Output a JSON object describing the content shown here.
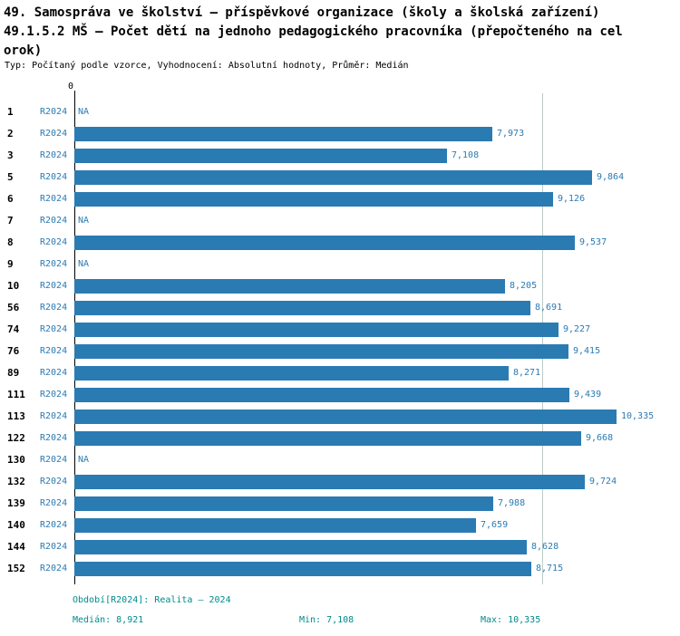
{
  "chart_data": {
    "type": "bar",
    "orientation": "horizontal",
    "title_line1": "49. Samospráva ve školství – příspěvkové organizace (školy a školská zařízení)",
    "title_line2": "49.1.5.2 MŠ – Počet dětí na jednoho pedagogického pracovníka (přepočteného na cel",
    "title_line3": "orok)",
    "subtitle": "Typ: Počítaný podle vzorce, Vyhodnocení: Absolutní hodnoty, Průměr: Medián",
    "series_label": "R2024",
    "x_axis": {
      "zero_label": "0",
      "min": 0,
      "max": 10.335
    },
    "median_line_value": 8.921,
    "legend_position": "none",
    "grid": "median-line-only",
    "categories": [
      "1",
      "2",
      "3",
      "5",
      "6",
      "7",
      "8",
      "9",
      "10",
      "56",
      "74",
      "76",
      "89",
      "111",
      "113",
      "122",
      "130",
      "132",
      "139",
      "140",
      "144",
      "152"
    ],
    "values": [
      null,
      7.973,
      7.108,
      9.864,
      9.126,
      null,
      9.537,
      null,
      8.205,
      8.691,
      9.227,
      9.415,
      8.271,
      9.439,
      10.335,
      9.668,
      null,
      9.724,
      7.988,
      7.659,
      8.628,
      8.715
    ],
    "value_labels": [
      "NA",
      "7,973",
      "7,108",
      "9,864",
      "9,126",
      "NA",
      "9,537",
      "NA",
      "8,205",
      "8,691",
      "9,227",
      "9,415",
      "8,271",
      "9,439",
      "10,335",
      "9,668",
      "NA",
      "9,724",
      "7,988",
      "7,659",
      "8,628",
      "8,715"
    ],
    "colors": {
      "bar": "#2b7bb3",
      "value_text": "#2b7bb3",
      "row_id_text": "#000000",
      "footer_text": "#008b8b",
      "median_line": "#bccbc6"
    },
    "footer": {
      "period": "Období[R2024]: Realita – 2024",
      "median": "Medián: 8,921",
      "min": "Min: 7,108",
      "max": "Max: 10,335"
    }
  }
}
